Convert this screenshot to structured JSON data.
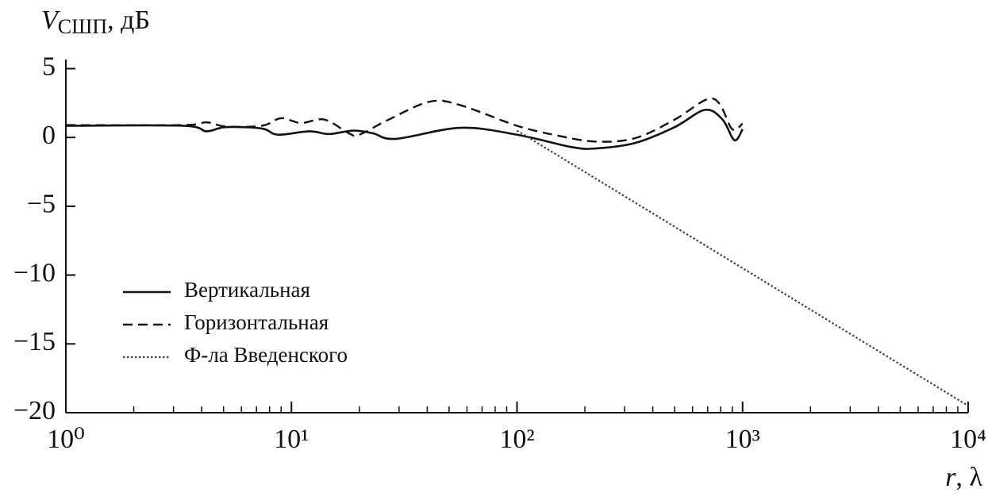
{
  "chart_data": {
    "type": "line",
    "ylabel": "V",
    "ylabel_sub": "СШП",
    "ylabel_unit": ", дБ",
    "xlabel": "r",
    "xlabel_unit": ", λ",
    "xscale": "log",
    "xlim": [
      1,
      10000
    ],
    "xticks": [
      {
        "value": 1,
        "label": "10⁰"
      },
      {
        "value": 10,
        "label": "10¹"
      },
      {
        "value": 100,
        "label": "10²"
      },
      {
        "value": 1000,
        "label": "10³"
      },
      {
        "value": 10000,
        "label": "10⁴"
      }
    ],
    "ylim": [
      -20,
      5
    ],
    "yticks": [
      5,
      0,
      {
        "value": -5,
        "label": "−5"
      },
      {
        "value": -10,
        "label": "−10"
      },
      {
        "value": -15,
        "label": "−15"
      },
      {
        "value": -20,
        "label": "−20"
      }
    ],
    "legend": "left",
    "series": [
      {
        "name": "Вертикальная",
        "color": "#111111",
        "dash": "solid",
        "x": [
          1,
          3.3,
          4.2,
          5.1,
          7.4,
          8.7,
          12,
          14.7,
          18.8,
          23,
          29,
          56,
          100,
          175,
          223,
          334,
          500,
          680,
          815,
          920,
          1000
        ],
        "values": [
          0.85,
          0.85,
          0.45,
          0.75,
          0.65,
          0.2,
          0.45,
          0.25,
          0.5,
          0.3,
          -0.1,
          0.7,
          0.2,
          -0.7,
          -0.8,
          -0.4,
          0.75,
          2.0,
          1.3,
          -0.2,
          0.6
        ]
      },
      {
        "name": "Горизонтальная",
        "color": "#111111",
        "dash": "dashed",
        "x": [
          1,
          3.3,
          4.2,
          5.1,
          7.4,
          9,
          11,
          14,
          18,
          20,
          27,
          41,
          56,
          100,
          150,
          223,
          334,
          500,
          690,
          790,
          900,
          1000
        ],
        "values": [
          0.9,
          0.9,
          1.1,
          0.8,
          0.85,
          1.4,
          1.05,
          1.3,
          0.3,
          0.2,
          1.3,
          2.6,
          2.35,
          0.85,
          0.15,
          -0.3,
          -0.05,
          1.3,
          2.75,
          2.45,
          0.6,
          1.0
        ]
      },
      {
        "name": "Ф-ла Введенского",
        "color": "#444444",
        "dash": "dotted",
        "x": [
          100,
          10000
        ],
        "values": [
          0.5,
          -19.5
        ]
      }
    ]
  }
}
